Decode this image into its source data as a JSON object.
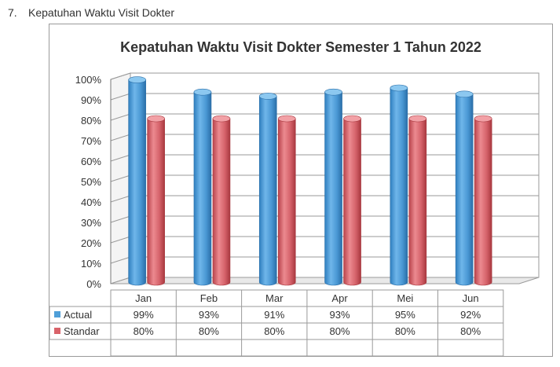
{
  "document": {
    "section_number": "7.",
    "section_title": "Kepatuhan Waktu Visit Dokter"
  },
  "chart_data": {
    "type": "bar",
    "title": "Kepatuhan Waktu Visit Dokter Semester 1 Tahun 2022",
    "categories": [
      "Jan",
      "Feb",
      "Mar",
      "Apr",
      "Mei",
      "Jun"
    ],
    "series": [
      {
        "name": "Actual",
        "values": [
          99,
          93,
          91,
          93,
          95,
          92
        ],
        "labels": [
          "99%",
          "93%",
          "91%",
          "93%",
          "95%",
          "92%"
        ],
        "color": "#4f9fd8"
      },
      {
        "name": "Standar",
        "values": [
          80,
          80,
          80,
          80,
          80,
          80
        ],
        "labels": [
          "80%",
          "80%",
          "80%",
          "80%",
          "80%",
          "80%"
        ],
        "color": "#d9636a"
      }
    ],
    "y_ticks": [
      "0%",
      "10%",
      "20%",
      "30%",
      "40%",
      "50%",
      "60%",
      "70%",
      "80%",
      "90%",
      "100%"
    ],
    "ylim": [
      0,
      100
    ],
    "grid": true,
    "shape": "3d-cylinder",
    "legend": "data-table-bottom"
  }
}
